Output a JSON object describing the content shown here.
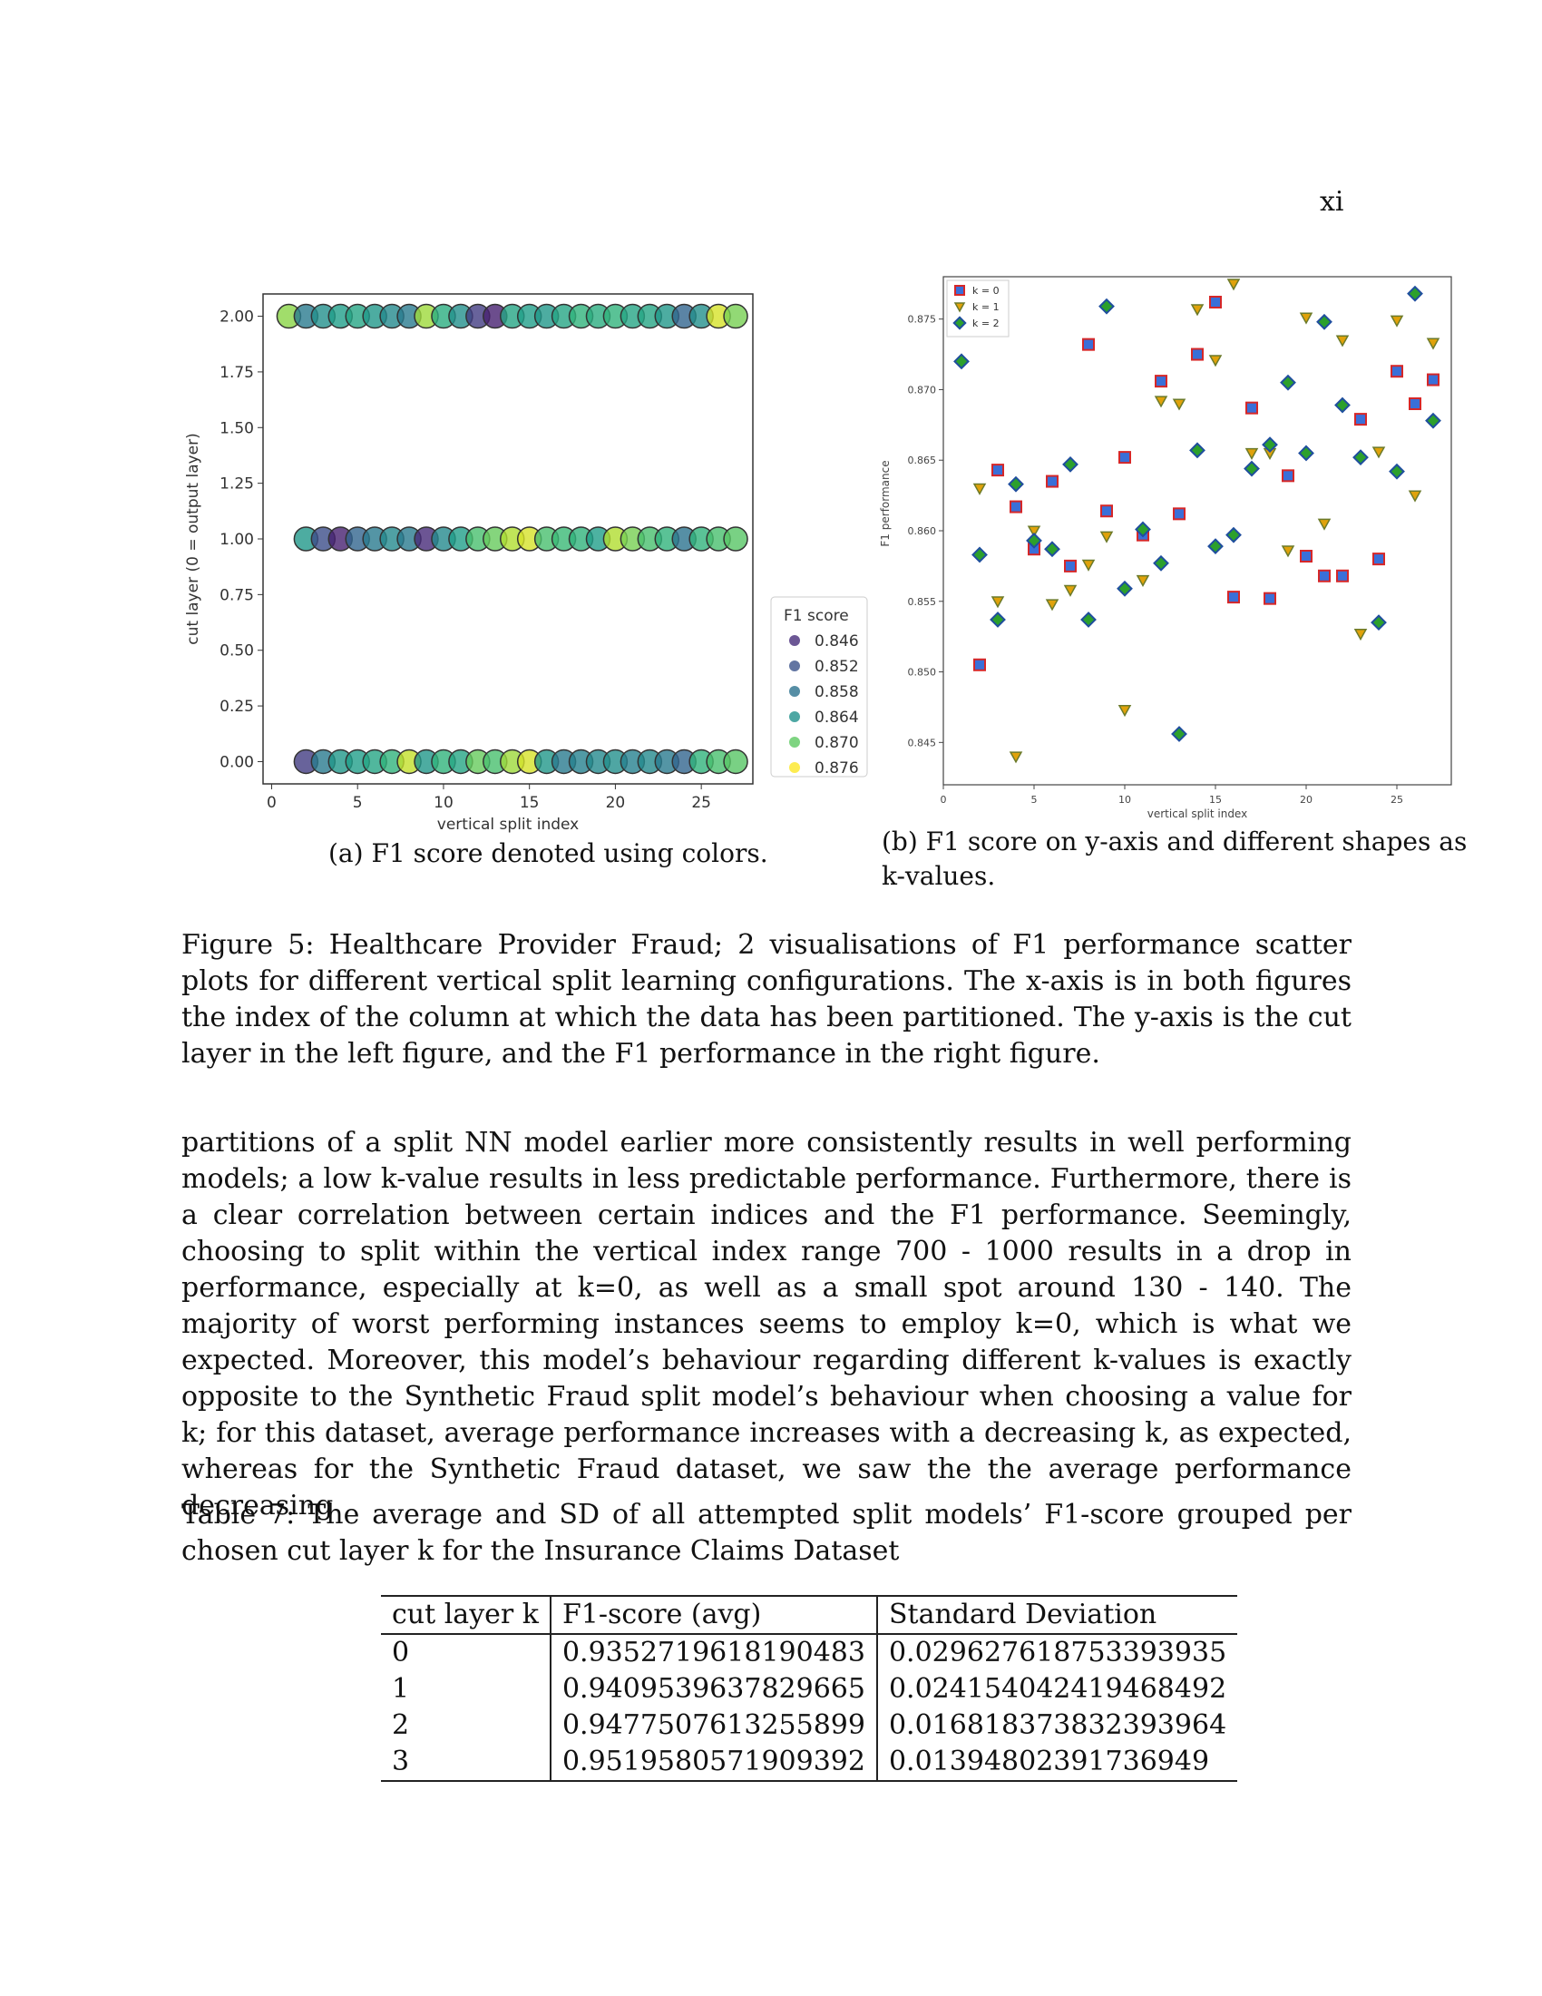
{
  "page_number": "xi",
  "figure": {
    "subfig_a_caption": "(a) F1 score denoted using colors.",
    "subfig_b_caption": "(b) F1 score on y-axis and different shapes as k-values.",
    "caption": "Figure 5: Healthcare Provider Fraud; 2 visualisations of F1 performance scatter plots for different vertical split learning configurations. The x-axis is in both figures the index of the column at which the data has been partitioned. The y-axis is the cut layer in the left figure, and the F1 performance in the right figure."
  },
  "chart_data": [
    {
      "type": "scatter",
      "xlabel": "vertical split index",
      "ylabel": "cut layer (0 = output layer)",
      "xlim": [
        -0.5,
        28
      ],
      "ylim": [
        -0.1,
        2.1
      ],
      "xticks": [
        "0",
        "5",
        "10",
        "15",
        "20",
        "25"
      ],
      "yticks": [
        "0.00",
        "0.25",
        "0.50",
        "0.75",
        "1.00",
        "1.25",
        "1.50",
        "1.75",
        "2.00"
      ],
      "legend_title": "F1 score",
      "legend_position": "outside-right",
      "legend": [
        {
          "label": "0.846",
          "color": "#472d7b"
        },
        {
          "label": "0.852",
          "color": "#3b528b"
        },
        {
          "label": "0.858",
          "color": "#2c728e"
        },
        {
          "label": "0.864",
          "color": "#21918c"
        },
        {
          "label": "0.870",
          "color": "#5ec962"
        },
        {
          "label": "0.876",
          "color": "#fde725"
        }
      ],
      "colormap": "viridis",
      "color_range": [
        0.844,
        0.878
      ],
      "series": [
        {
          "y": 2,
          "x": [
            1,
            2,
            3,
            4,
            5,
            6,
            7,
            8,
            9,
            10,
            11,
            12,
            13,
            14,
            15,
            16,
            17,
            18,
            19,
            20,
            21,
            22,
            23,
            24,
            25,
            26,
            27
          ],
          "f1": [
            0.872,
            0.858,
            0.861,
            0.863,
            0.864,
            0.862,
            0.86,
            0.858,
            0.873,
            0.865,
            0.861,
            0.85,
            0.847,
            0.864,
            0.863,
            0.862,
            0.864,
            0.866,
            0.865,
            0.866,
            0.864,
            0.864,
            0.862,
            0.855,
            0.861,
            0.876,
            0.871
          ]
        },
        {
          "y": 1,
          "x": [
            2,
            3,
            4,
            5,
            6,
            7,
            8,
            9,
            10,
            11,
            12,
            13,
            14,
            15,
            16,
            17,
            18,
            19,
            20,
            21,
            22,
            23,
            24,
            25,
            26,
            27
          ],
          "f1": [
            0.862,
            0.852,
            0.847,
            0.855,
            0.858,
            0.86,
            0.858,
            0.848,
            0.86,
            0.863,
            0.868,
            0.87,
            0.874,
            0.876,
            0.868,
            0.867,
            0.866,
            0.863,
            0.874,
            0.871,
            0.868,
            0.866,
            0.857,
            0.866,
            0.868,
            0.869
          ]
        },
        {
          "y": 0,
          "x": [
            2,
            3,
            4,
            5,
            6,
            7,
            8,
            9,
            10,
            11,
            12,
            13,
            14,
            15,
            16,
            17,
            18,
            19,
            20,
            21,
            22,
            23,
            24,
            25,
            26,
            27
          ],
          "f1": [
            0.85,
            0.858,
            0.862,
            0.863,
            0.864,
            0.866,
            0.875,
            0.862,
            0.866,
            0.864,
            0.87,
            0.868,
            0.873,
            0.876,
            0.862,
            0.858,
            0.859,
            0.86,
            0.861,
            0.859,
            0.86,
            0.858,
            0.855,
            0.866,
            0.868,
            0.869
          ]
        }
      ]
    },
    {
      "type": "scatter",
      "xlabel": "vertical split index",
      "ylabel": "F1 performance",
      "xlim": [
        0,
        28
      ],
      "ylim": [
        0.842,
        0.878
      ],
      "xticks": [
        "0",
        "5",
        "10",
        "15",
        "20",
        "25"
      ],
      "yticks": [
        "0.845",
        "0.850",
        "0.855",
        "0.860",
        "0.865",
        "0.870",
        "0.875"
      ],
      "legend_position": "top-left",
      "series": [
        {
          "name": "k = 0",
          "marker": "square",
          "x": [
            2,
            3,
            4,
            5,
            6,
            7,
            8,
            9,
            10,
            11,
            12,
            13,
            14,
            15,
            16,
            17,
            18,
            19,
            20,
            21,
            22,
            23,
            24,
            25,
            26,
            27
          ],
          "y": [
            0.8505,
            0.8643,
            0.8617,
            0.8587,
            0.8635,
            0.8575,
            0.8732,
            0.8614,
            0.8652,
            0.8597,
            0.8706,
            0.8612,
            0.8725,
            0.8762,
            0.8553,
            0.8687,
            0.8552,
            0.8639,
            0.8582,
            0.8568,
            0.8568,
            0.8679,
            0.858,
            0.8713,
            0.869,
            0.8707
          ]
        },
        {
          "name": "k = 1",
          "marker": "triangle-down",
          "x": [
            2,
            3,
            4,
            5,
            6,
            7,
            8,
            9,
            10,
            11,
            12,
            13,
            14,
            15,
            16,
            17,
            18,
            19,
            20,
            21,
            22,
            23,
            24,
            25,
            26,
            27
          ],
          "y": [
            0.863,
            0.855,
            0.844,
            0.86,
            0.8548,
            0.8558,
            0.8576,
            0.8596,
            0.8473,
            0.8565,
            0.8692,
            0.869,
            0.8757,
            0.8721,
            0.8775,
            0.8655,
            0.8655,
            0.8586,
            0.8751,
            0.8605,
            0.8735,
            0.8527,
            0.8656,
            0.8749,
            0.8625,
            0.8733
          ]
        },
        {
          "name": "k = 2",
          "marker": "diamond",
          "x": [
            1,
            2,
            3,
            4,
            5,
            6,
            7,
            8,
            9,
            10,
            11,
            12,
            13,
            14,
            15,
            16,
            17,
            18,
            19,
            20,
            21,
            22,
            23,
            24,
            25,
            26,
            27
          ],
          "y": [
            0.872,
            0.8583,
            0.8537,
            0.8633,
            0.8593,
            0.8587,
            0.8647,
            0.8537,
            0.8759,
            0.8559,
            0.8601,
            0.8577,
            0.8456,
            0.8657,
            0.8589,
            0.8597,
            0.8644,
            0.8661,
            0.8705,
            0.8655,
            0.8748,
            0.8689,
            0.8652,
            0.8535,
            0.8642,
            0.8768,
            0.8678
          ]
        }
      ]
    }
  ],
  "body_paragraph": "partitions of a split NN model earlier more consistently results in well performing models; a low k-value results in less predictable performance. Furthermore, there is a clear correlation between certain indices and the F1 performance. Seemingly, choosing to split within the vertical index range 700 - 1000 results in a drop in performance, especially at k=0, as well as a small spot around 130 - 140. The majority of worst performing instances seems to employ k=0, which is what we expected. Moreover, this model’s behaviour regarding different k-values is exactly opposite to the Synthetic Fraud split model’s behaviour when choosing a value for k; for this dataset, average performance increases with a decreasing k, as expected, whereas for the Synthetic Fraud dataset, we saw the the average performance decreasing",
  "table": {
    "caption": "Table 7: The average and SD of all attempted split models’ F1-score grouped per chosen cut layer k for the Insurance Claims Dataset",
    "headers": [
      "cut layer k",
      "F1-score (avg)",
      "Standard Deviation"
    ],
    "rows": [
      [
        "0",
        "0.9352719618190483",
        "0.029627618753393935"
      ],
      [
        "1",
        "0.9409539637829665",
        "0.024154042419468492"
      ],
      [
        "2",
        "0.9477507613255899",
        "0.016818373832393964"
      ],
      [
        "3",
        "0.9519580571909392",
        "0.01394802391736949"
      ]
    ]
  }
}
